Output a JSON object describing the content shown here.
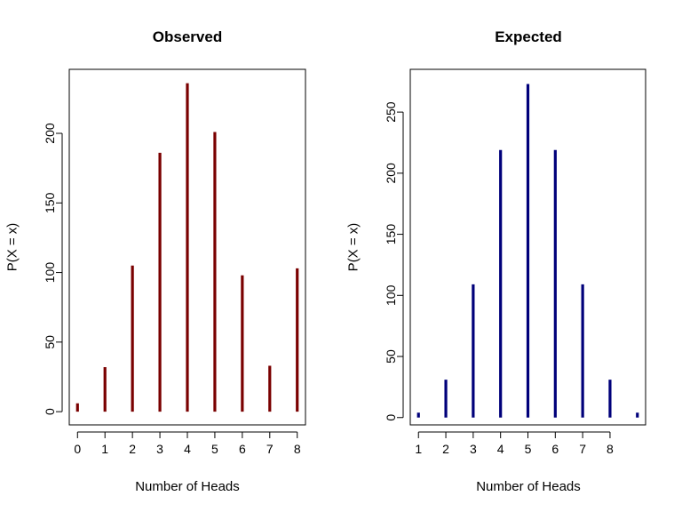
{
  "chart_data": [
    {
      "type": "bar",
      "title": "Observed",
      "xlabel": "Number of Heads",
      "ylabel": "P(X = x)",
      "color": "#7a0000",
      "x": [
        0,
        1,
        2,
        3,
        4,
        5,
        6,
        7,
        8
      ],
      "values": [
        6,
        32,
        105,
        186,
        236,
        201,
        98,
        33,
        103
      ],
      "x_ticks": [
        0,
        1,
        2,
        3,
        4,
        5,
        6,
        7,
        8
      ],
      "y_ticks": [
        0,
        50,
        100,
        150,
        200
      ],
      "xlim": [
        -0.3,
        8.3
      ],
      "ylim": [
        -9.5,
        246
      ],
      "grid": false
    },
    {
      "type": "bar",
      "title": "Expected",
      "xlabel": "Number of Heads",
      "ylabel": "P(X = x)",
      "color": "#00007a",
      "x": [
        1,
        2,
        3,
        4,
        5,
        6,
        7,
        8,
        9
      ],
      "values": [
        4,
        31,
        109,
        219,
        273,
        219,
        109,
        31,
        4
      ],
      "x_ticks": [
        1,
        2,
        3,
        4,
        5,
        6,
        7,
        8
      ],
      "y_ticks": [
        0,
        50,
        100,
        150,
        200,
        250
      ],
      "xlim": [
        0.7,
        9.3
      ],
      "ylim": [
        -6,
        285
      ],
      "grid": false
    }
  ]
}
